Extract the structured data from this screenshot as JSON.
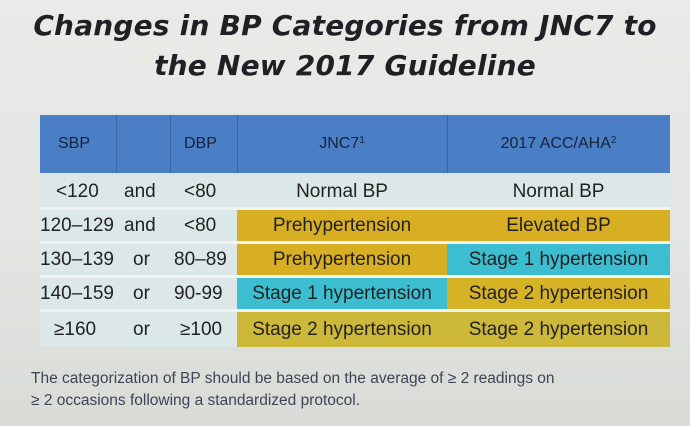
{
  "title": {
    "line1": "Changes in BP Categories from JNC7 to",
    "line2": "the New 2017 Guideline"
  },
  "table": {
    "headers": {
      "sbp": "SBP",
      "dbp": "DBP",
      "jnc7": "JNC7",
      "jnc7_sup": "1",
      "acc": "2017 ACC/AHA",
      "acc_sup": "2"
    },
    "rows": [
      {
        "sbp": "<120",
        "conj": "and",
        "dbp": "<80",
        "jnc7": "Normal BP",
        "acc": "Normal BP"
      },
      {
        "sbp": "120–129",
        "conj": "and",
        "dbp": "<80",
        "jnc7": "Prehypertension",
        "acc": "Elevated BP"
      },
      {
        "sbp": "130–139",
        "conj": "or",
        "dbp": "80–89",
        "jnc7": "Prehypertension",
        "acc": "Stage 1 hypertension"
      },
      {
        "sbp": "140–159",
        "conj": "or",
        "dbp": "90-99",
        "jnc7": "Stage 1 hypertension",
        "acc": "Stage 2 hypertension"
      },
      {
        "sbp": "≥160",
        "conj": "or",
        "dbp": "≥100",
        "jnc7": "Stage 2 hypertension",
        "acc": "Stage 2 hypertension"
      }
    ]
  },
  "colors": {
    "header": "#4a7fc5",
    "row_bg": "#dce8e7",
    "prehypertension": "#d8ae23",
    "elevated": "#d8ae23",
    "stage1": "#3cbdd0",
    "stage2": "#cdb83a"
  },
  "footnote": {
    "line1": "The categorization of BP should be based on the average of ≥ 2 readings on",
    "line2": "≥ 2 occasions following a standardized protocol."
  }
}
